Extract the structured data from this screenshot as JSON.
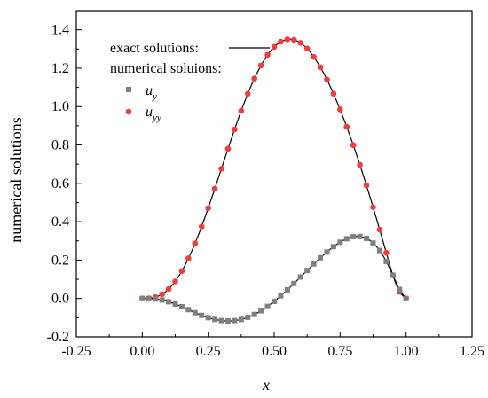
{
  "chart_data": {
    "type": "line",
    "xlabel": "x",
    "ylabel": "numerical solutions",
    "xlim": [
      -0.25,
      1.25
    ],
    "ylim": [
      -0.2,
      1.5
    ],
    "xticks": [
      "-0.25",
      "0.00",
      "0.25",
      "0.50",
      "0.75",
      "1.00",
      "1.25"
    ],
    "yticks": [
      "-0.2",
      "0.0",
      "0.2",
      "0.4",
      "0.6",
      "0.8",
      "1.0",
      "1.2",
      "1.4"
    ],
    "grid": false,
    "legend": {
      "position": "top-left",
      "exact_label": "exact solutions:",
      "numerical_label": "numerical soluions:",
      "uy_label": "u",
      "uy_sub": "y",
      "uyy_label": "u",
      "uyy_sub": "yy"
    },
    "colors": {
      "uy": "#7f7f7f",
      "uyy": "#f03c3c",
      "exact": "#000000"
    },
    "series": [
      {
        "id": "uyy",
        "marker": "circle",
        "x": [
          0.0,
          0.025,
          0.05,
          0.075,
          0.1,
          0.125,
          0.15,
          0.175,
          0.2,
          0.225,
          0.25,
          0.275,
          0.3,
          0.325,
          0.35,
          0.375,
          0.4,
          0.425,
          0.45,
          0.475,
          0.5,
          0.525,
          0.55,
          0.575,
          0.6,
          0.625,
          0.65,
          0.675,
          0.7,
          0.725,
          0.75,
          0.775,
          0.8,
          0.825,
          0.85,
          0.875,
          0.9,
          0.925,
          0.95,
          0.975,
          1.0
        ],
        "y": [
          0.0,
          0.001,
          0.007,
          0.022,
          0.049,
          0.089,
          0.143,
          0.209,
          0.287,
          0.375,
          0.471,
          0.572,
          0.676,
          0.78,
          0.881,
          0.978,
          1.067,
          1.146,
          1.214,
          1.27,
          1.311,
          1.338,
          1.35,
          1.348,
          1.332,
          1.302,
          1.259,
          1.205,
          1.141,
          1.067,
          0.985,
          0.895,
          0.799,
          0.697,
          0.589,
          0.476,
          0.358,
          0.238,
          0.121,
          0.035,
          0.0
        ]
      },
      {
        "id": "uy",
        "marker": "square",
        "x": [
          0.0,
          0.025,
          0.05,
          0.075,
          0.1,
          0.125,
          0.15,
          0.175,
          0.2,
          0.225,
          0.25,
          0.275,
          0.3,
          0.325,
          0.35,
          0.375,
          0.4,
          0.425,
          0.45,
          0.475,
          0.5,
          0.525,
          0.55,
          0.575,
          0.6,
          0.625,
          0.65,
          0.675,
          0.7,
          0.725,
          0.75,
          0.775,
          0.8,
          0.825,
          0.85,
          0.875,
          0.9,
          0.925,
          0.95,
          0.975,
          1.0
        ],
        "y": [
          0.0,
          -0.0004,
          -0.003,
          -0.008,
          -0.017,
          -0.029,
          -0.043,
          -0.058,
          -0.074,
          -0.088,
          -0.1,
          -0.109,
          -0.115,
          -0.117,
          -0.115,
          -0.109,
          -0.098,
          -0.083,
          -0.064,
          -0.041,
          -0.015,
          0.014,
          0.045,
          0.078,
          0.112,
          0.146,
          0.18,
          0.212,
          0.242,
          0.27,
          0.293,
          0.311,
          0.322,
          0.323,
          0.313,
          0.289,
          0.25,
          0.193,
          0.121,
          0.047,
          0.0
        ]
      }
    ]
  }
}
